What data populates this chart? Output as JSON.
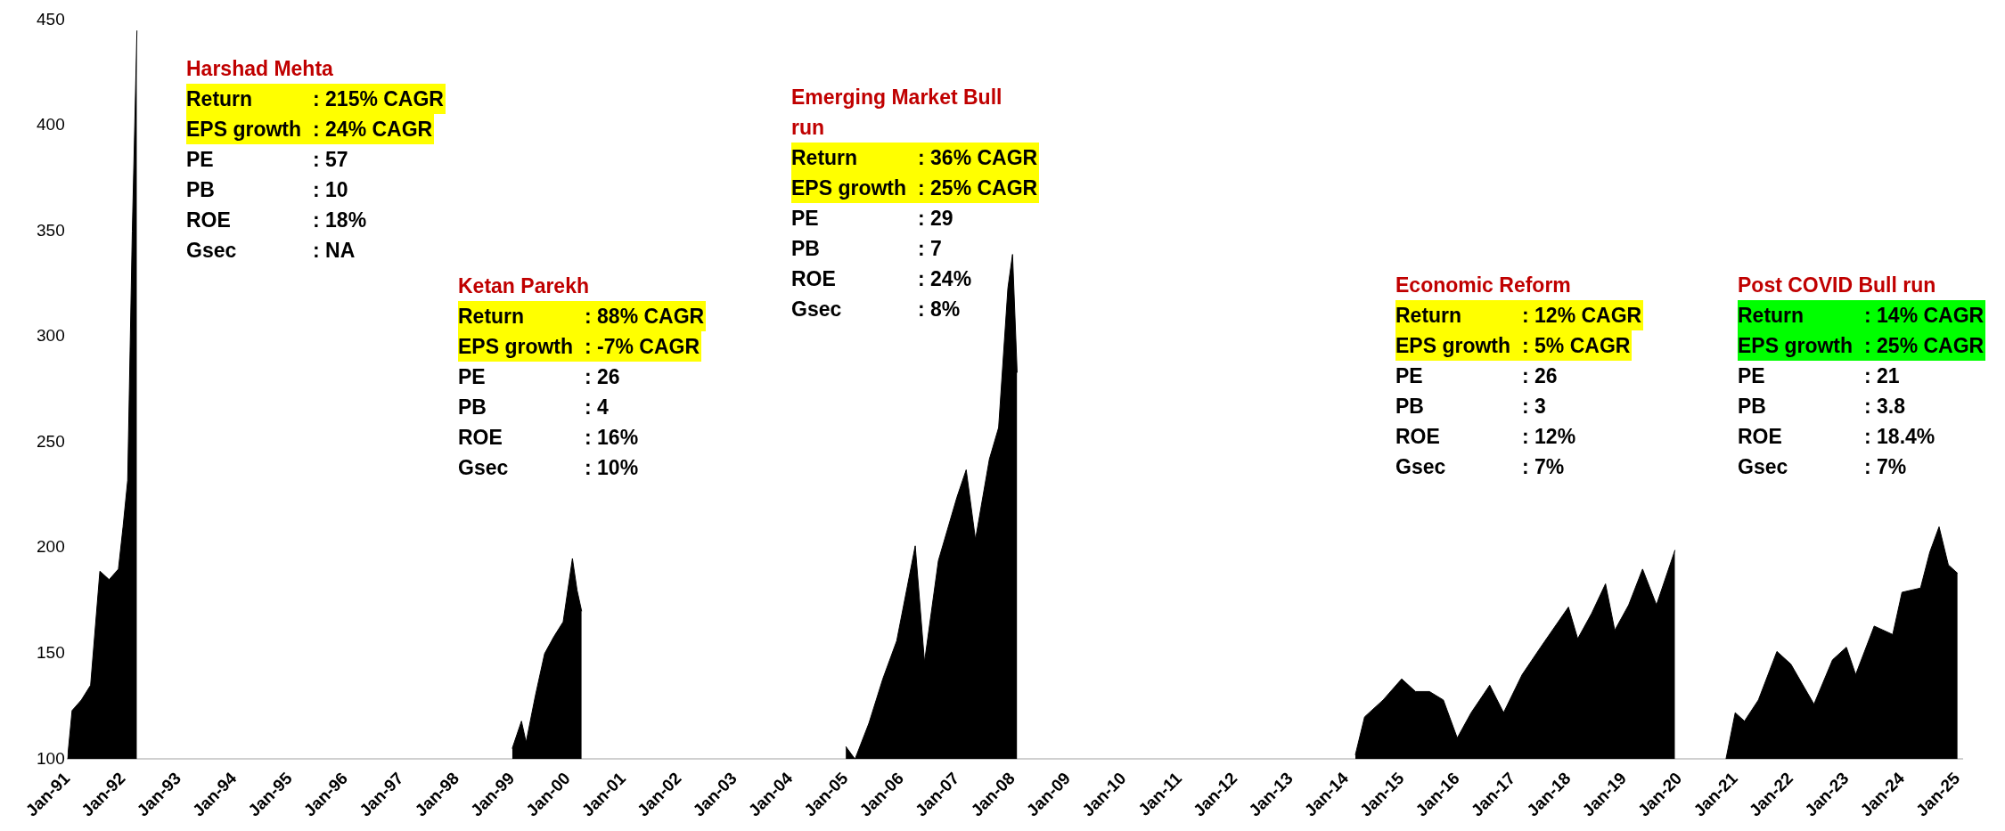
{
  "chart_data": {
    "type": "area",
    "xlim": [
      "1991-01",
      "2025-02"
    ],
    "ylim": [
      100,
      450
    ],
    "yticks": [
      100,
      150,
      200,
      250,
      300,
      350,
      400,
      450
    ],
    "xticks": [
      {
        "value": "1991",
        "label": "Jan-91"
      },
      {
        "value": "1992",
        "label": "Jan-92"
      },
      {
        "value": "1993",
        "label": "Jan-93"
      },
      {
        "value": "1994",
        "label": "Jan-94"
      },
      {
        "value": "1995",
        "label": "Jan-95"
      },
      {
        "value": "1996",
        "label": "Jan-96"
      },
      {
        "value": "1997",
        "label": "Jan-97"
      },
      {
        "value": "1998",
        "label": "Jan-98"
      },
      {
        "value": "1999",
        "label": "Jan-99"
      },
      {
        "value": "2000",
        "label": "Jan-00"
      },
      {
        "value": "2001",
        "label": "Jan-01"
      },
      {
        "value": "2002",
        "label": "Jan-02"
      },
      {
        "value": "2003",
        "label": "Jan-03"
      },
      {
        "value": "2004",
        "label": "Jan-04"
      },
      {
        "value": "2005",
        "label": "Jan-05"
      },
      {
        "value": "2006",
        "label": "Jan-06"
      },
      {
        "value": "2007",
        "label": "Jan-07"
      },
      {
        "value": "2008",
        "label": "Jan-08"
      },
      {
        "value": "2009",
        "label": "Jan-09"
      },
      {
        "value": "2010",
        "label": "Jan-10"
      },
      {
        "value": "2011",
        "label": "Jan-11"
      },
      {
        "value": "2012",
        "label": "Jan-12"
      },
      {
        "value": "2013",
        "label": "Jan-13"
      },
      {
        "value": "2014",
        "label": "Jan-14"
      },
      {
        "value": "2015",
        "label": "Jan-15"
      },
      {
        "value": "2016",
        "label": "Jan-16"
      },
      {
        "value": "2017",
        "label": "Jan-17"
      },
      {
        "value": "2018",
        "label": "Jan-18"
      },
      {
        "value": "2019",
        "label": "Jan-19"
      },
      {
        "value": "2020",
        "label": "Jan-20"
      },
      {
        "value": "2021",
        "label": "Jan-21"
      },
      {
        "value": "2022",
        "label": "Jan-22"
      },
      {
        "value": "2023",
        "label": "Jan-23"
      },
      {
        "value": "2024",
        "label": "Jan-24"
      },
      {
        "value": "2025",
        "label": "Jan-25"
      }
    ],
    "series": [
      {
        "color": "#000000",
        "x": [
          "1991-01",
          "1991-02",
          "1991-04",
          "1991-06",
          "1991-08",
          "1991-10",
          "1991-12",
          "1992-01",
          "1992-02",
          "1992-03",
          "1992-04",
          "1992-05",
          "1999-01",
          "1999-03",
          "1999-04",
          "1999-06",
          "1999-08",
          "1999-10",
          "1999-12",
          "2000-02",
          "2000-03",
          "2000-04",
          "2000-05",
          "2005-01",
          "2005-03",
          "2005-06",
          "2005-09",
          "2005-12",
          "2006-04",
          "2006-06",
          "2006-09",
          "2007-01",
          "2007-03",
          "2007-05",
          "2007-08",
          "2007-10",
          "2007-12",
          "2008-01",
          "2008-02",
          "2008-03",
          "2014-03",
          "2014-05",
          "2014-09",
          "2015-01",
          "2015-04",
          "2015-07",
          "2015-10",
          "2016-01",
          "2016-04",
          "2016-08",
          "2016-11",
          "2017-03",
          "2017-07",
          "2018-01",
          "2018-03",
          "2018-06",
          "2018-09",
          "2018-11",
          "2019-02",
          "2019-05",
          "2019-08",
          "2019-12",
          "2020-06",
          "2020-11",
          "2021-01",
          "2021-03",
          "2021-06",
          "2021-10",
          "2022-01",
          "2022-06",
          "2022-10",
          "2023-01",
          "2023-03",
          "2023-07",
          "2023-11",
          "2024-01",
          "2024-05",
          "2024-07",
          "2024-09",
          "2024-11",
          "2025-01"
        ],
        "values": [
          100,
          123,
          128,
          135,
          189,
          185,
          190,
          210,
          232,
          350,
          445,
          null,
          105,
          118,
          108,
          130,
          150,
          158,
          165,
          195,
          180,
          170,
          null,
          106,
          100,
          117,
          138,
          156,
          201,
          146,
          194,
          224,
          237,
          204,
          242,
          257,
          323,
          339,
          283,
          null,
          102,
          120,
          128,
          138,
          132,
          132,
          128,
          110,
          122,
          135,
          122,
          140,
          153,
          172,
          157,
          169,
          183,
          161,
          173,
          190,
          173,
          199,
          null,
          100,
          122,
          118,
          128,
          151,
          145,
          126,
          147,
          153,
          140,
          163,
          159,
          179,
          181,
          198,
          210,
          192,
          188
        ]
      }
    ],
    "annotations": [
      "Harshad Mehta",
      "Return : 215% CAGR",
      "EPS growth : 24% CAGR",
      "PE : 57",
      "PB : 10",
      "ROE : 18%",
      "Gsec : NA",
      "Ketan Parekh",
      "Return : 88% CAGR",
      "EPS growth : -7% CAGR",
      "PE : 26",
      "PB : 4",
      "ROE : 16%",
      "Gsec : 10%",
      "Emerging Market Bull run",
      "Return : 36% CAGR",
      "EPS growth : 25% CAGR",
      "PE : 29",
      "PB : 7",
      "ROE : 24%",
      "Gsec : 8%",
      "Economic Reform",
      "Return : 12% CAGR",
      "EPS growth : 5% CAGR",
      "PE : 26",
      "PB : 3",
      "ROE : 12%",
      "Gsec : 7%",
      "Post COVID Bull run",
      "Return : 14% CAGR",
      "EPS growth : 25% CAGR",
      "PE : 21",
      "PB : 3.8",
      "ROE : 18.4%",
      "Gsec : 7%"
    ]
  }
}
